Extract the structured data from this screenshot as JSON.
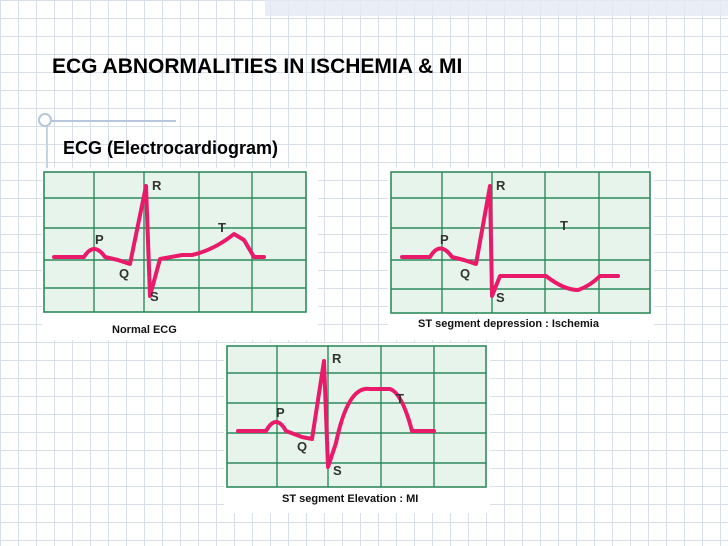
{
  "slide": {
    "title": "ECG ABNORMALITIES IN ISCHEMIA & MI",
    "subtitle": "ECG (Electrocardiogram)"
  },
  "figures": {
    "normal": {
      "caption": "Normal ECG",
      "labels": {
        "p": "P",
        "q": "Q",
        "r": "R",
        "s": "S",
        "t": "T"
      }
    },
    "depression": {
      "caption": "ST segment depression : Ischemia",
      "labels": {
        "p": "P",
        "q": "Q",
        "r": "R",
        "s": "S",
        "t": "T"
      }
    },
    "elevation": {
      "caption": "ST segment Elevation : MI",
      "labels": {
        "p": "P",
        "q": "Q",
        "r": "R",
        "s": "S",
        "t": "T"
      }
    }
  },
  "colors": {
    "trace": "#ea1a6a",
    "grid": "#2f8a5c",
    "grid_background": "#e6f4ec"
  }
}
